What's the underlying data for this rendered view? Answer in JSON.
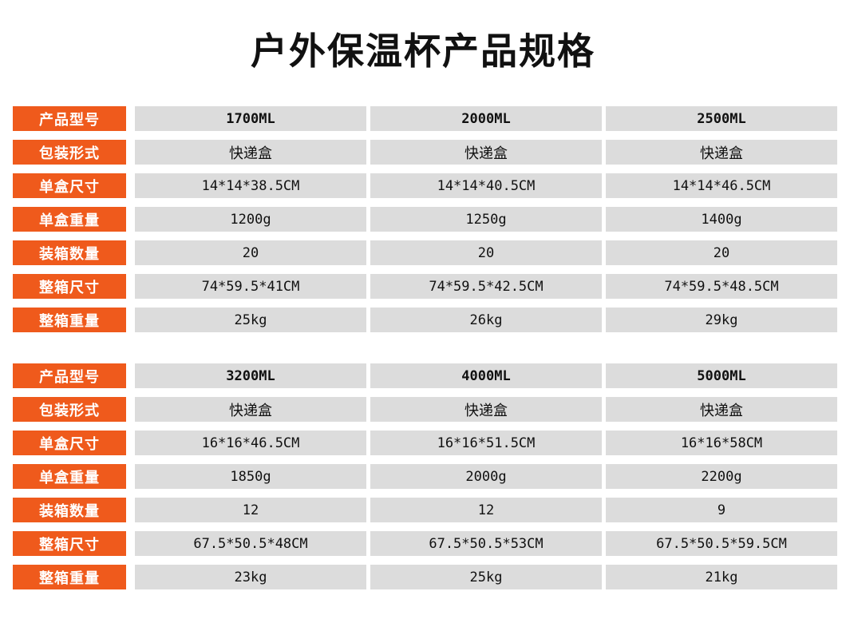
{
  "title": "户外保温杯产品规格",
  "colors": {
    "label_bg": "#ef5a1c",
    "cell_bg": "#dcdcdc"
  },
  "tables": [
    {
      "rows": [
        {
          "label": "产品型号",
          "values": [
            "1700ML",
            "2000ML",
            "2500ML"
          ]
        },
        {
          "label": "包装形式",
          "values": [
            "快递盒",
            "快递盒",
            "快递盒"
          ]
        },
        {
          "label": "单盒尺寸",
          "values": [
            "14*14*38.5CM",
            "14*14*40.5CM",
            "14*14*46.5CM"
          ]
        },
        {
          "label": "单盒重量",
          "values": [
            "1200g",
            "1250g",
            "1400g"
          ]
        },
        {
          "label": "装箱数量",
          "values": [
            "20",
            "20",
            "20"
          ]
        },
        {
          "label": "整箱尺寸",
          "values": [
            "74*59.5*41CM",
            "74*59.5*42.5CM",
            "74*59.5*48.5CM"
          ]
        },
        {
          "label": "整箱重量",
          "values": [
            "25kg",
            "26kg",
            "29kg"
          ]
        }
      ]
    },
    {
      "rows": [
        {
          "label": "产品型号",
          "values": [
            "3200ML",
            "4000ML",
            "5000ML"
          ]
        },
        {
          "label": "包装形式",
          "values": [
            "快递盒",
            "快递盒",
            "快递盒"
          ]
        },
        {
          "label": "单盒尺寸",
          "values": [
            "16*16*46.5CM",
            "16*16*51.5CM",
            "16*16*58CM"
          ]
        },
        {
          "label": "单盒重量",
          "values": [
            "1850g",
            "2000g",
            "2200g"
          ]
        },
        {
          "label": "装箱数量",
          "values": [
            "12",
            "12",
            "9"
          ]
        },
        {
          "label": "整箱尺寸",
          "values": [
            "67.5*50.5*48CM",
            "67.5*50.5*53CM",
            "67.5*50.5*59.5CM"
          ]
        },
        {
          "label": "整箱重量",
          "values": [
            "23kg",
            "25kg",
            "21kg"
          ]
        }
      ]
    }
  ]
}
